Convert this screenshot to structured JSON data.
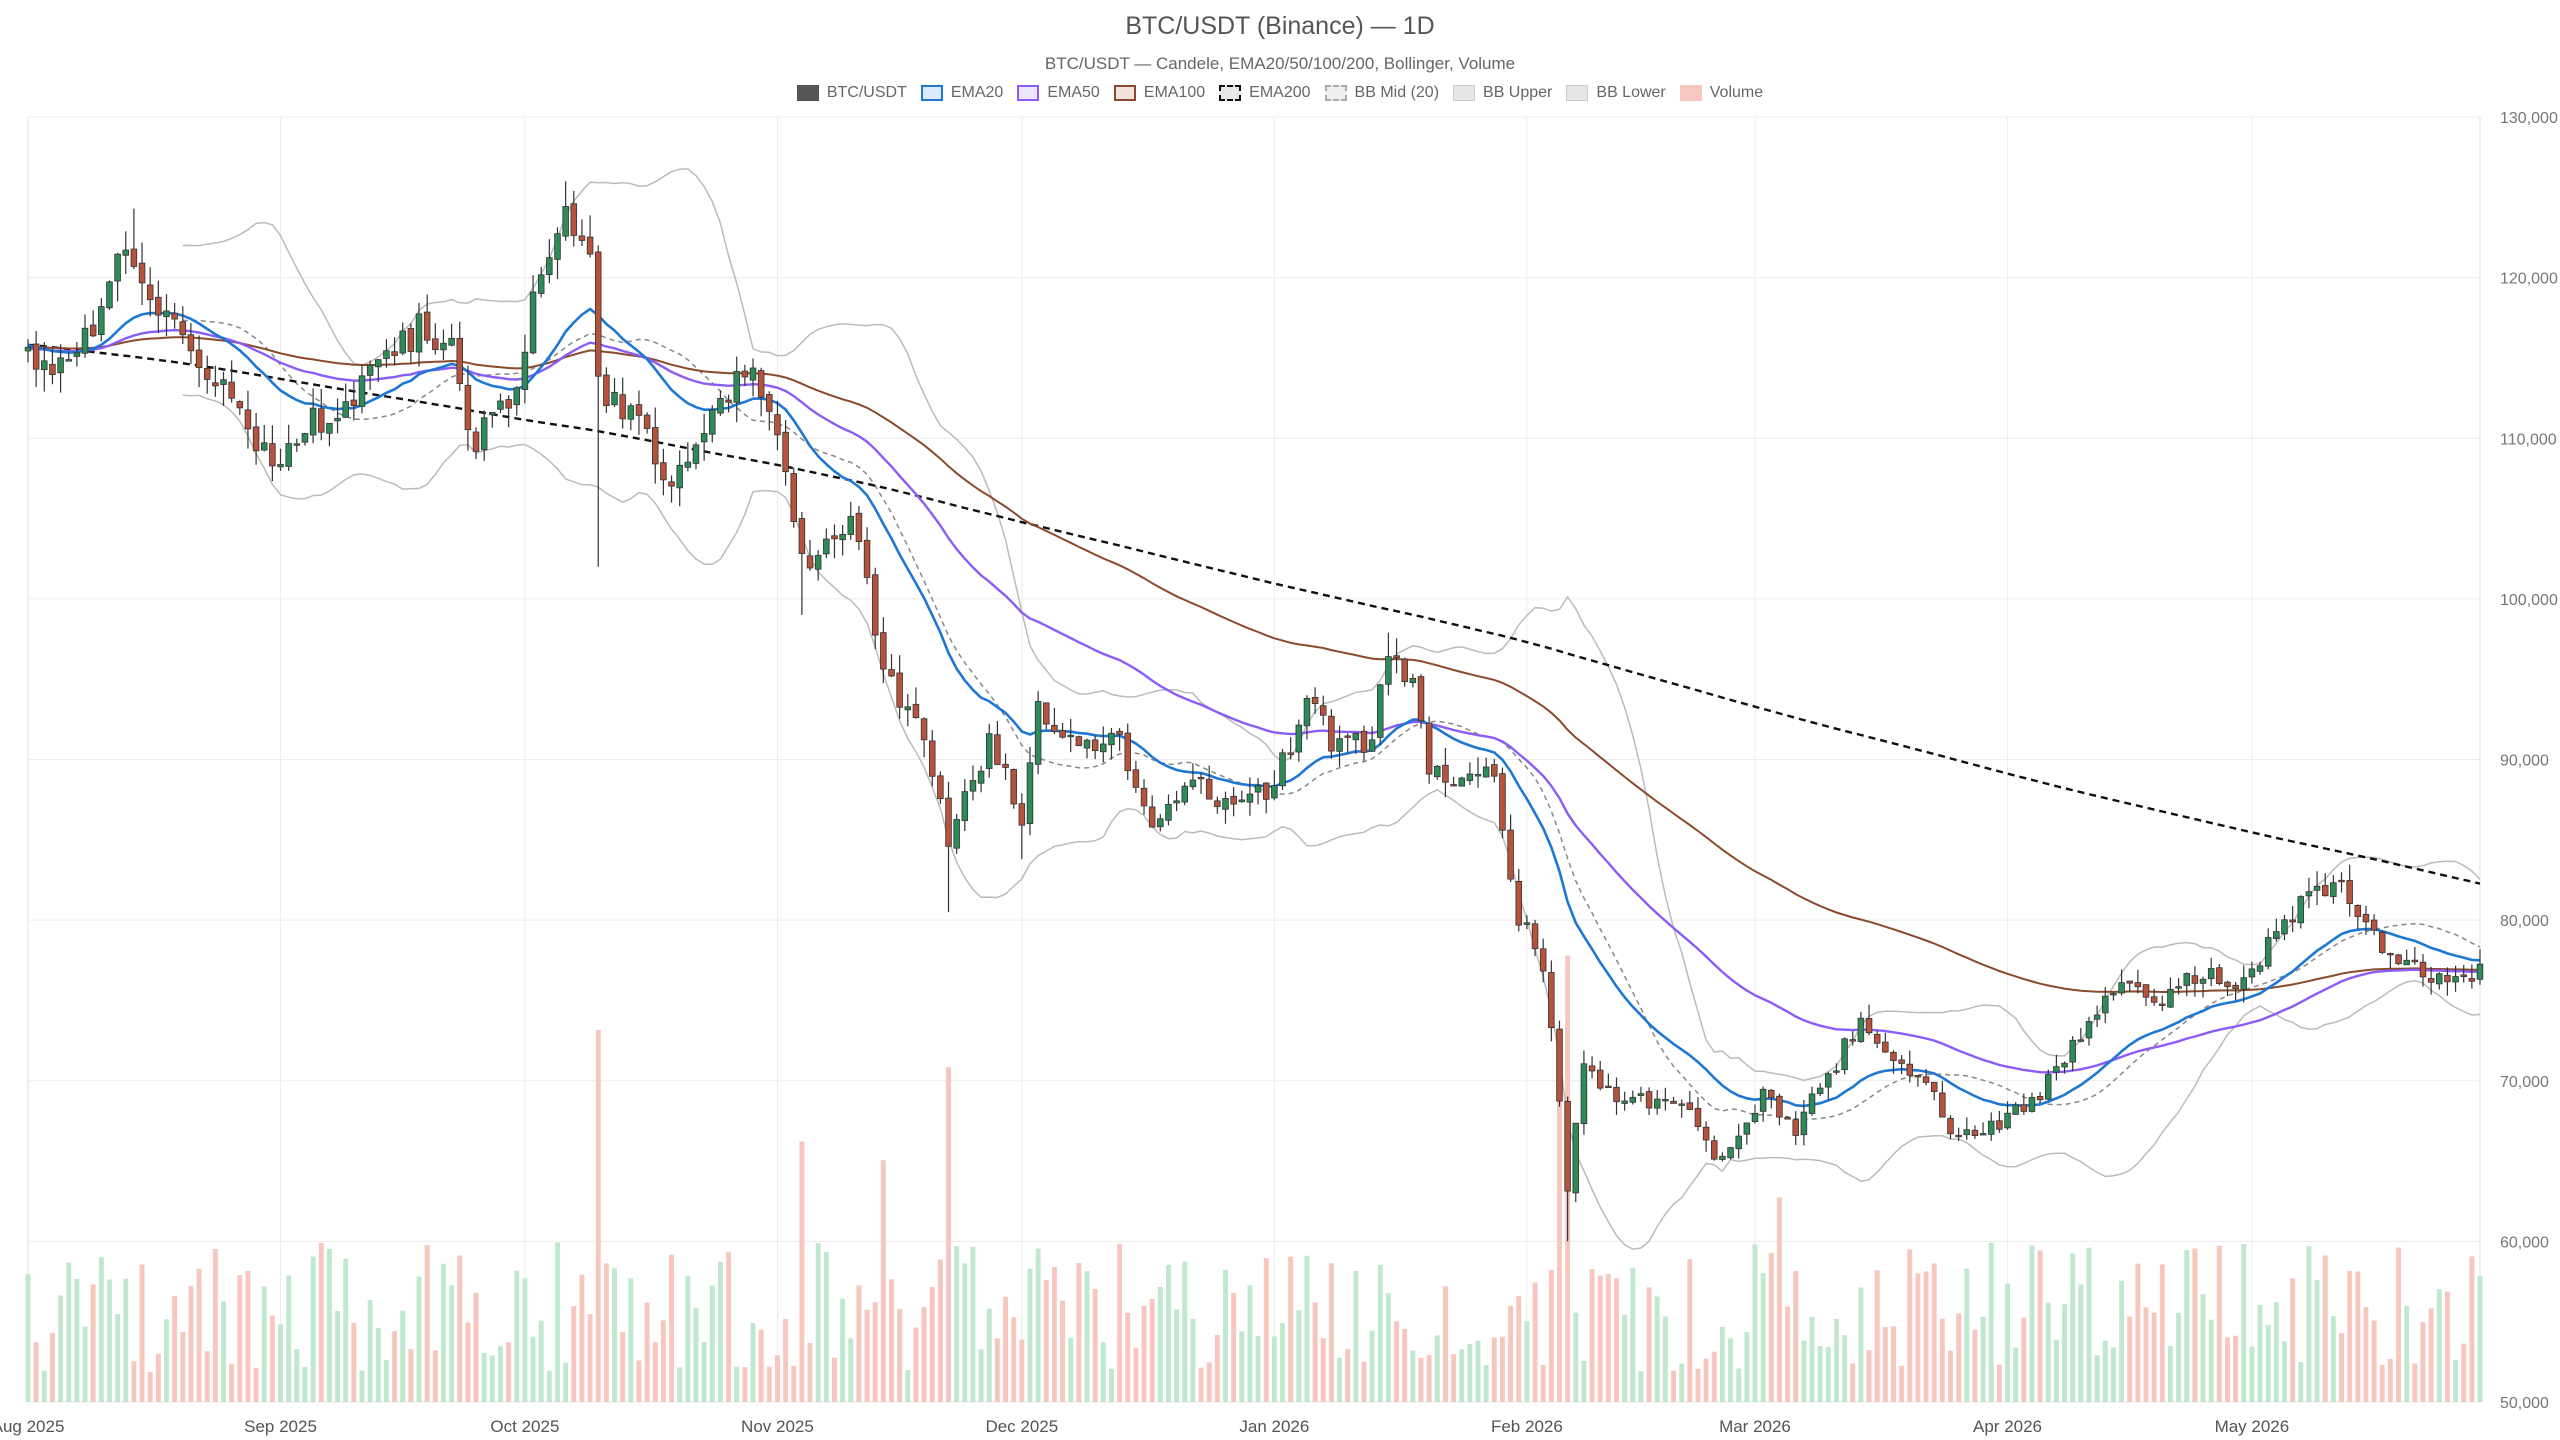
{
  "chart_data": {
    "type": "candlestick",
    "title": "BTC/USDT (Binance) — 1D",
    "subtitle": "BTC/USDT — Candele, EMA20/50/100/200, Bollinger, Volume",
    "legend_position": "top-center",
    "ylim": [
      50000,
      130000
    ],
    "y_ticks": [
      "50,000",
      "60,000",
      "70,000",
      "80,000",
      "90,000",
      "100,000",
      "110,000",
      "120,000",
      "130,000"
    ],
    "x_tick_labels": [
      "Aug 2025",
      "Sep 2025",
      "Oct 2025",
      "Nov 2025",
      "Dec 2025",
      "Jan 2026",
      "Feb 2026",
      "Mar 2026",
      "Apr 2026",
      "May 2026"
    ],
    "grid": true,
    "colors": {
      "up": "#2e8b57",
      "down": "#b5533c",
      "ema20": "#1f77d4",
      "ema50": "#8b5cf6",
      "ema100": "#8b4a2b",
      "ema200": "#111111",
      "bb_mid": "#888888",
      "bb_band": "#bbbbbb",
      "vol_up": "#bfe8cf",
      "vol_down": "#f6c6bf"
    },
    "legend": [
      {
        "label": "BTC/USDT",
        "swatch": "candle"
      },
      {
        "label": "EMA20",
        "swatch": "ema20"
      },
      {
        "label": "EMA50",
        "swatch": "ema50"
      },
      {
        "label": "EMA100",
        "swatch": "ema100"
      },
      {
        "label": "EMA200",
        "swatch": "ema200"
      },
      {
        "label": "BB Mid (20)",
        "swatch": "bbmid"
      },
      {
        "label": "BB Upper",
        "swatch": "band"
      },
      {
        "label": "BB Lower",
        "swatch": "band"
      },
      {
        "label": "Volume",
        "swatch": "volume"
      }
    ],
    "close_anchors": [
      [
        "2025-08-01",
        115700
      ],
      [
        "2025-08-04",
        113500
      ],
      [
        "2025-08-09",
        116500
      ],
      [
        "2025-08-13",
        122500
      ],
      [
        "2025-08-18",
        117300
      ],
      [
        "2025-08-24",
        113500
      ],
      [
        "2025-08-31",
        108800
      ],
      [
        "2025-09-05",
        111000
      ],
      [
        "2025-09-10",
        112500
      ],
      [
        "2025-09-18",
        116800
      ],
      [
        "2025-09-22",
        115500
      ],
      [
        "2025-09-25",
        109500
      ],
      [
        "2025-09-30",
        113500
      ],
      [
        "2025-10-03",
        120500
      ],
      [
        "2025-10-06",
        124500
      ],
      [
        "2025-10-09",
        121500
      ],
      [
        "2025-10-10",
        113000
      ],
      [
        "2025-10-15",
        111000
      ],
      [
        "2025-10-19",
        107500
      ],
      [
        "2025-10-24",
        111500
      ],
      [
        "2025-10-28",
        114500
      ],
      [
        "2025-11-01",
        110000
      ],
      [
        "2025-11-05",
        101500
      ],
      [
        "2025-11-10",
        105500
      ],
      [
        "2025-11-14",
        95500
      ],
      [
        "2025-11-19",
        91000
      ],
      [
        "2025-11-22",
        84800
      ],
      [
        "2025-11-27",
        91000
      ],
      [
        "2025-12-01",
        86500
      ],
      [
        "2025-12-03",
        93000
      ],
      [
        "2025-12-09",
        90500
      ],
      [
        "2025-12-12",
        92200
      ],
      [
        "2025-12-17",
        86500
      ],
      [
        "2025-12-22",
        88500
      ],
      [
        "2025-12-26",
        87300
      ],
      [
        "2026-01-01",
        88500
      ],
      [
        "2026-01-05",
        93500
      ],
      [
        "2026-01-09",
        90500
      ],
      [
        "2026-01-13",
        91500
      ],
      [
        "2026-01-15",
        96500
      ],
      [
        "2026-01-18",
        95000
      ],
      [
        "2026-01-20",
        89200
      ],
      [
        "2026-01-25",
        88500
      ],
      [
        "2026-01-28",
        89500
      ],
      [
        "2026-01-31",
        80000
      ],
      [
        "2026-02-03",
        77500
      ],
      [
        "2026-02-06",
        63500
      ],
      [
        "2026-02-08",
        70500
      ],
      [
        "2026-02-14",
        68500
      ],
      [
        "2026-02-17",
        69000
      ],
      [
        "2026-02-22",
        67500
      ],
      [
        "2026-02-25",
        64800
      ],
      [
        "2026-03-02",
        69000
      ],
      [
        "2026-03-06",
        67000
      ],
      [
        "2026-03-10",
        70500
      ],
      [
        "2026-03-14",
        73500
      ],
      [
        "2026-03-17",
        71500
      ],
      [
        "2026-03-22",
        69500
      ],
      [
        "2026-03-26",
        66500
      ],
      [
        "2026-03-31",
        67500
      ],
      [
        "2026-04-04",
        68500
      ],
      [
        "2026-04-08",
        71500
      ],
      [
        "2026-04-12",
        74500
      ],
      [
        "2026-04-16",
        76500
      ],
      [
        "2026-04-20",
        75000
      ],
      [
        "2026-04-25",
        76800
      ],
      [
        "2026-04-29",
        76000
      ],
      [
        "2026-05-04",
        79000
      ],
      [
        "2026-05-08",
        81800
      ],
      [
        "2026-05-12",
        82000
      ],
      [
        "2026-05-14",
        80300
      ],
      [
        "2026-05-17",
        78500
      ],
      [
        "2026-05-21",
        77000
      ],
      [
        "2026-05-25",
        76600
      ],
      [
        "2026-05-29",
        76800
      ]
    ],
    "volume_spikes": [
      [
        "2025-10-10",
        1
      ],
      [
        "2025-11-22",
        0.9
      ],
      [
        "2026-02-05",
        1
      ],
      [
        "2026-02-06",
        1.2
      ],
      [
        "2025-11-04",
        0.7
      ],
      [
        "2025-11-14",
        0.65
      ],
      [
        "2026-03-04",
        0.55
      ]
    ],
    "vol_ylim": [
      0,
      1.0
    ]
  }
}
